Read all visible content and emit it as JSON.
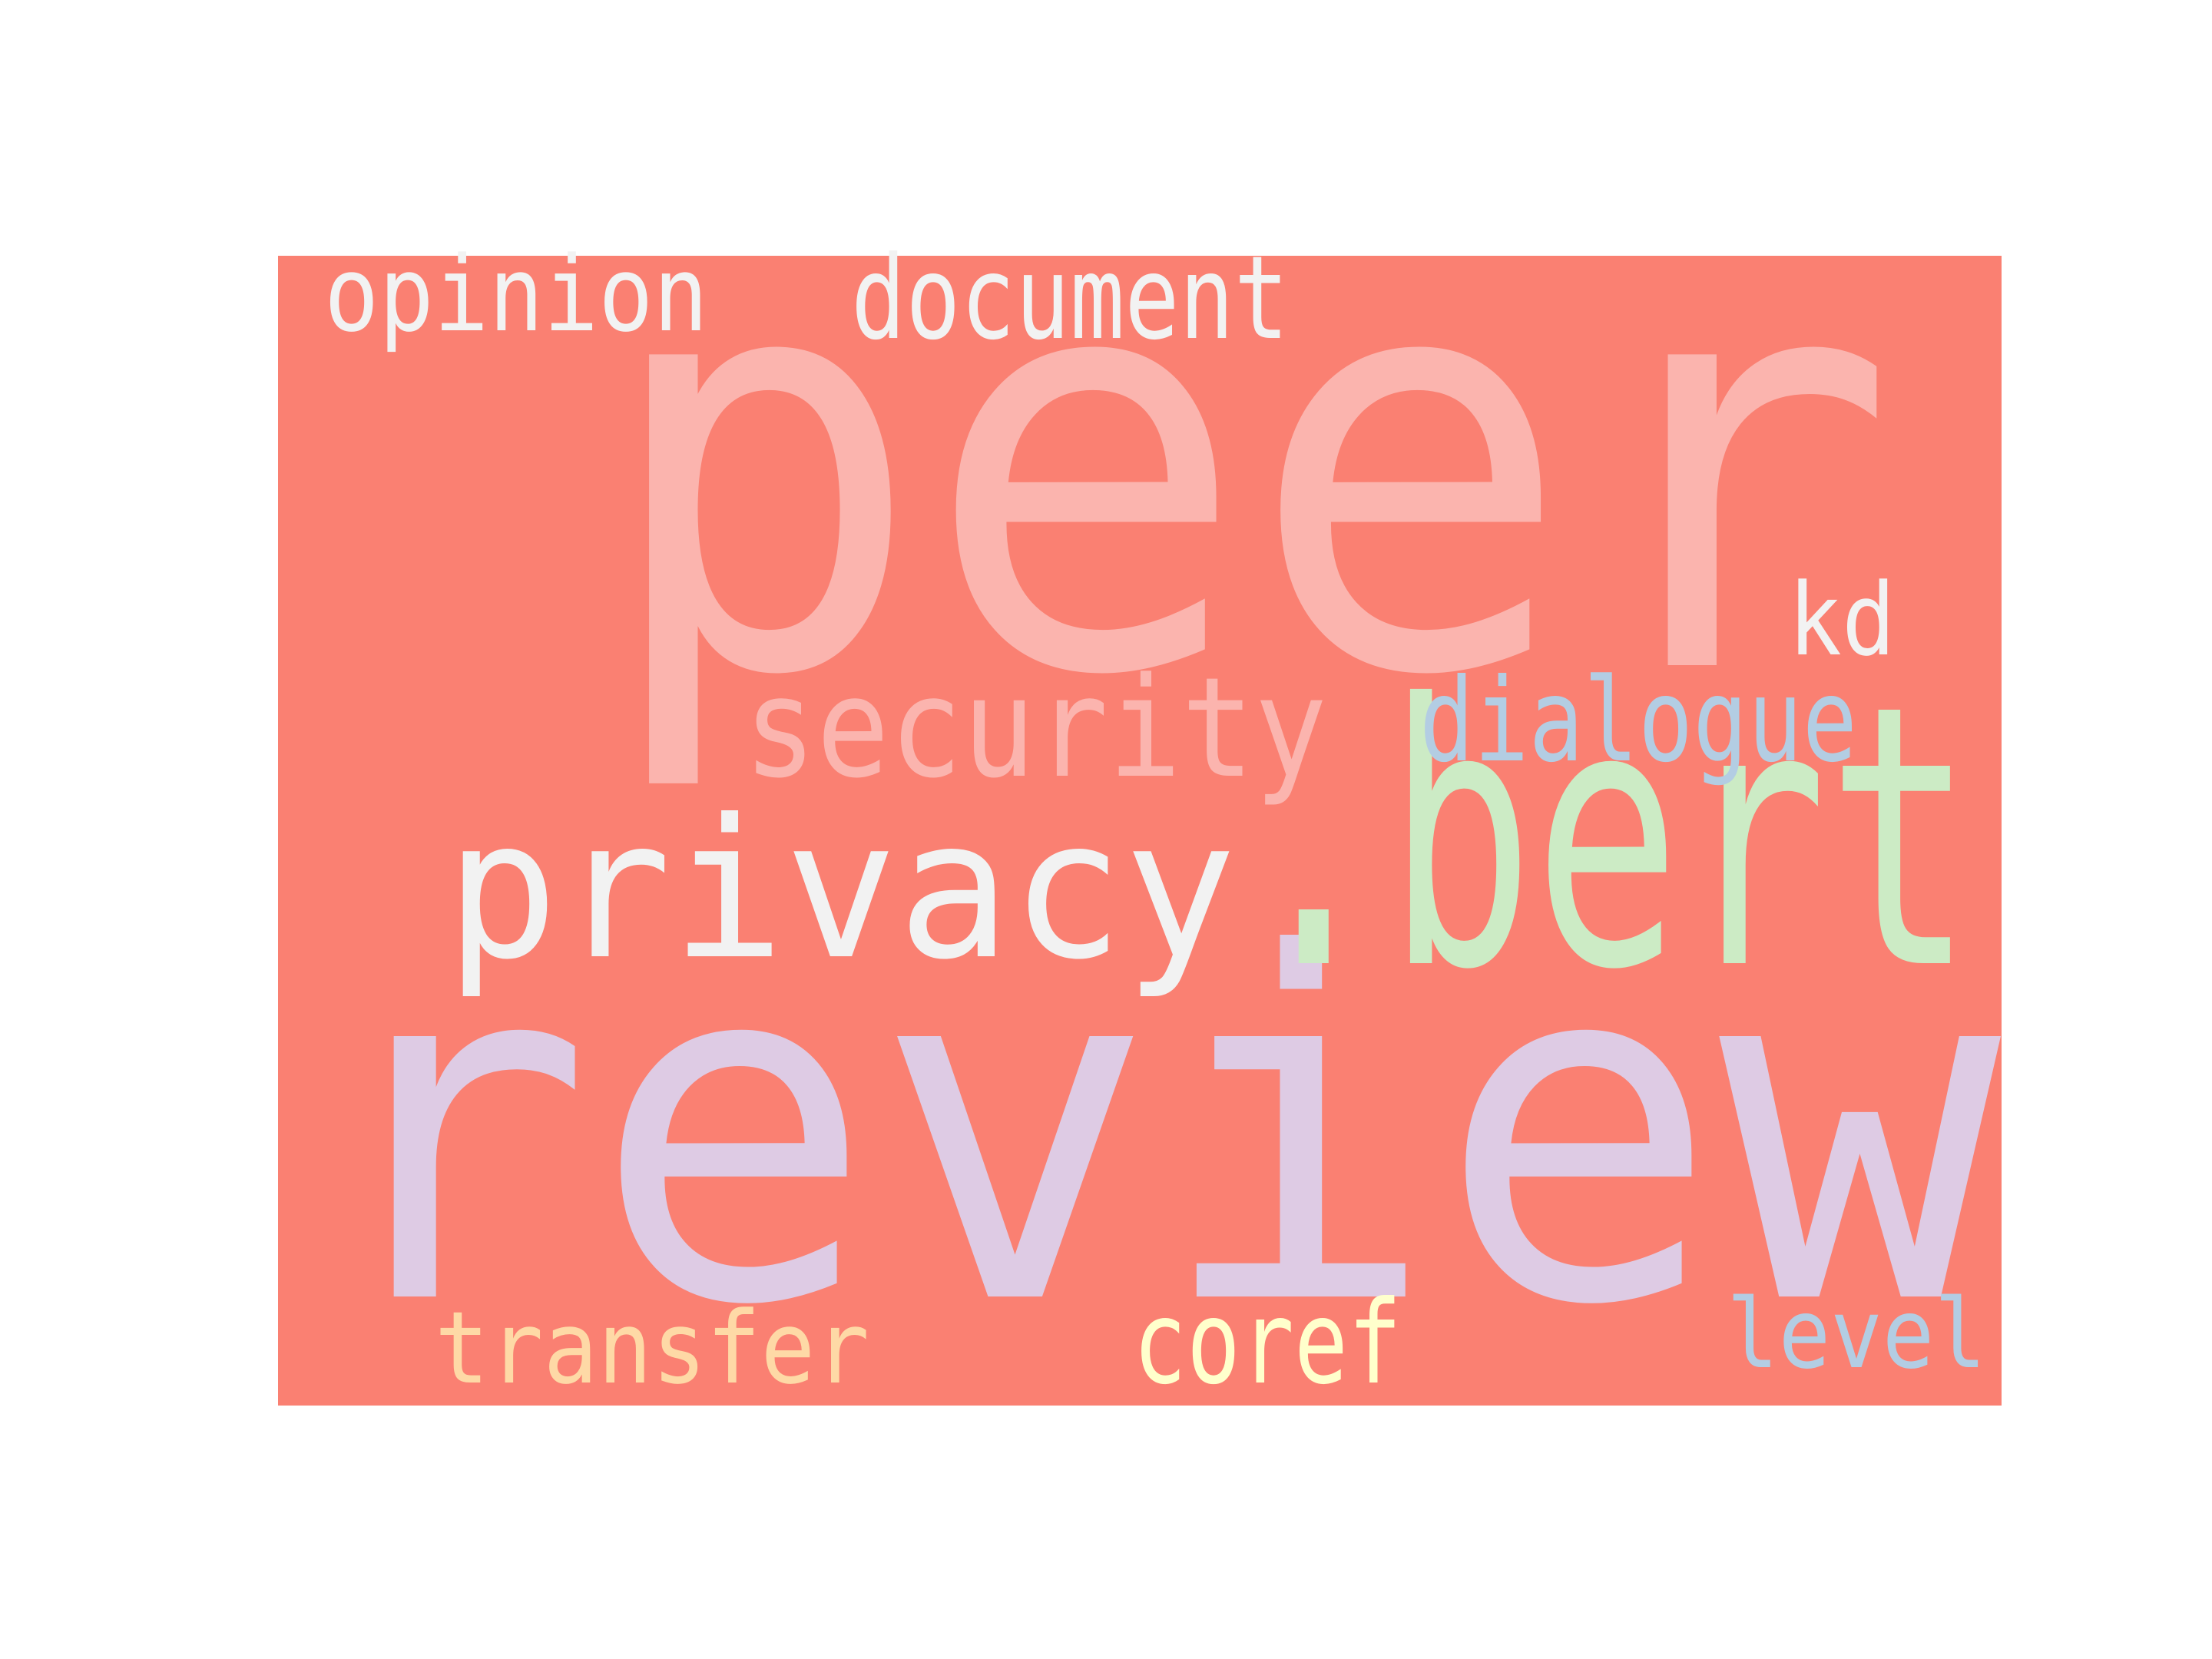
{
  "wordcloud": {
    "background_color": "#fa8072",
    "words": [
      {
        "text": "peer",
        "color": "#fbb4ae"
      },
      {
        "text": "review",
        "color": "#decbe4"
      },
      {
        "text": ".bert",
        "color": "#ccebc5"
      },
      {
        "text": "privacy",
        "color": "#f2f2f2"
      },
      {
        "text": "security",
        "color": "#fbb4ae"
      },
      {
        "text": "dialogue",
        "color": "#b3cde3"
      },
      {
        "text": "document",
        "color": "#f2f2f2"
      },
      {
        "text": "opinion",
        "color": "#f2f2f2"
      },
      {
        "text": "kd",
        "color": "#f2f2f2"
      },
      {
        "text": "transfer",
        "color": "#fed9a6"
      },
      {
        "text": "coref",
        "color": "#ffffcc"
      },
      {
        "text": "level",
        "color": "#b3cde3"
      }
    ]
  }
}
